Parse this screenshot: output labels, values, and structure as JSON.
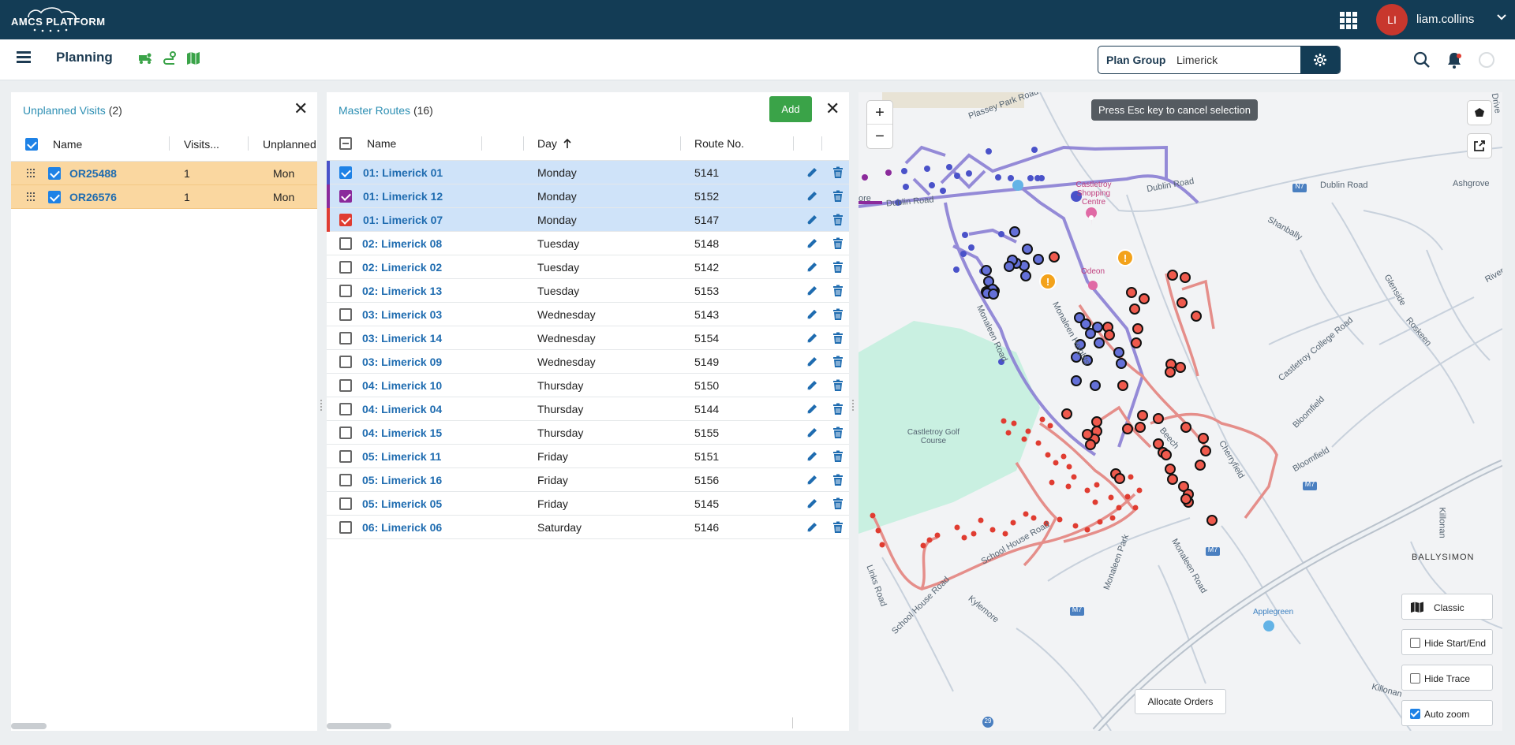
{
  "app": {
    "logo_text": "AMCS PLATFORM",
    "user": {
      "initials": "LI",
      "name": "liam.collins"
    }
  },
  "subbar": {
    "title": "Planning",
    "plan_group_label": "Plan Group",
    "plan_group_value": "Limerick"
  },
  "unplanned": {
    "title": "Unplanned Visits",
    "count": "(2)",
    "columns": [
      "Name",
      "Visits...",
      "Unplanned"
    ],
    "rows": [
      {
        "name": "OR25488",
        "visits": "1",
        "unplanned": "Mon"
      },
      {
        "name": "OR26576",
        "visits": "1",
        "unplanned": "Mon"
      }
    ]
  },
  "routes": {
    "title": "Master Routes",
    "count": "(16)",
    "add_label": "Add",
    "columns": [
      "Name",
      "Day",
      "Route No."
    ],
    "rows": [
      {
        "name": "01: Limerick 01",
        "day": "Monday",
        "route_no": "5141"
      },
      {
        "name": "01: Limerick 12",
        "day": "Monday",
        "route_no": "5152"
      },
      {
        "name": "01: Limerick 07",
        "day": "Monday",
        "route_no": "5147"
      },
      {
        "name": "02: Limerick 08",
        "day": "Tuesday",
        "route_no": "5148"
      },
      {
        "name": "02: Limerick 02",
        "day": "Tuesday",
        "route_no": "5142"
      },
      {
        "name": "02: Limerick 13",
        "day": "Tuesday",
        "route_no": "5153"
      },
      {
        "name": "03: Limerick 03",
        "day": "Wednesday",
        "route_no": "5143"
      },
      {
        "name": "03: Limerick 14",
        "day": "Wednesday",
        "route_no": "5154"
      },
      {
        "name": "03: Limerick 09",
        "day": "Wednesday",
        "route_no": "5149"
      },
      {
        "name": "04: Limerick 10",
        "day": "Thursday",
        "route_no": "5150"
      },
      {
        "name": "04: Limerick 04",
        "day": "Thursday",
        "route_no": "5144"
      },
      {
        "name": "04: Limerick 15",
        "day": "Thursday",
        "route_no": "5155"
      },
      {
        "name": "05: Limerick 11",
        "day": "Friday",
        "route_no": "5151"
      },
      {
        "name": "05: Limerick 16",
        "day": "Friday",
        "route_no": "5156"
      },
      {
        "name": "05: Limerick 05",
        "day": "Friday",
        "route_no": "5145"
      },
      {
        "name": "06: Limerick 06",
        "day": "Saturday",
        "route_no": "5146"
      }
    ],
    "selected_colors": [
      "#4a52c9",
      "#8b2a9b",
      "#e03c31"
    ]
  },
  "map": {
    "esc_tip": "Press Esc key to cancel selection",
    "labels": {
      "plassey_park_road": "Plassey Park Road",
      "dublin_road_1": "Dublin Road",
      "dublin_road_2": "Dublin Road",
      "dublin_road_3": "Dublin Road",
      "dublin_road_4": "Dublin Road",
      "dublin_road_5": "Dublin Road",
      "ore": "ore",
      "shopping_centre": "Castletroy Shopping Centre",
      "odeon": "Odeon",
      "shanbally": "Shanbally",
      "glenside": "Glenside",
      "ashgrove": "Ashgrove",
      "rivers": "Rivers",
      "drive": "Drive",
      "roskeen": "Roskeen",
      "castletroy_college_road": "Castletroy College Road",
      "monaleen_road": "Monaleen Road",
      "monaleen_heights": "Monaleen Heights",
      "golf_course": "Castletroy Golf Course",
      "bloomfield_1": "Bloomfield",
      "bloomfield_2": "Bloomfield",
      "cherryfield": "Cherryfield",
      "beech": "Beech",
      "m7_a": "M7",
      "m7_b": "M7",
      "m7_c": "M7",
      "n7": "N7",
      "killonan": "Killonan",
      "killonan_2": "Killonan",
      "ballysimon": "BALLYSIMON",
      "applegreen": "Applegreen",
      "school_house_road_1": "School House Road",
      "school_house_road_2": "School House Road",
      "links_road": "Links Road",
      "kylemore": "Kylemore",
      "monaleen_park": "Monaleen Park",
      "monaleen_road_2": "Monaleen Road",
      "r29": "29"
    },
    "buttons": {
      "classic": "Classic",
      "hide_start_end": "Hide Start/End",
      "hide_trace": "Hide Trace",
      "auto_zoom": "Auto zoom",
      "allocate_orders": "Allocate Orders"
    },
    "auto_zoom_checked": true,
    "hide_trace_checked": false,
    "hide_start_end_checked": false
  }
}
